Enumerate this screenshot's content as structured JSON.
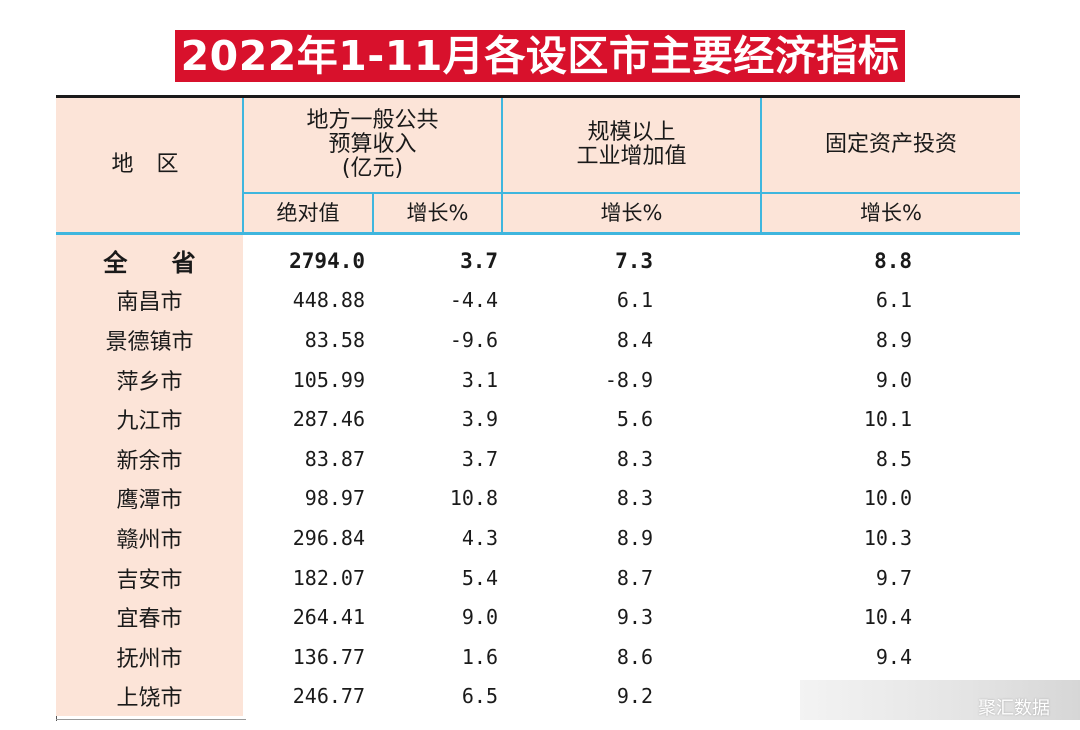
{
  "title": "2022年1-11月各设区市主要经济指标",
  "header": {
    "region": "地  区",
    "budget_lines": [
      "地方一般公共",
      "预算收入",
      "(亿元)"
    ],
    "industry_lines": [
      "规模以上",
      "工业增加值"
    ],
    "investment": "固定资产投资",
    "absolute": "绝对值",
    "growth": "增长%"
  },
  "rows": [
    {
      "name": "全  省",
      "abs": "2794.0",
      "budget_growth": "3.7",
      "industry_growth": "7.3",
      "investment_growth": "8.8"
    },
    {
      "name": "南昌市",
      "abs": "448.88",
      "budget_growth": "-4.4",
      "industry_growth": "6.1",
      "investment_growth": "6.1"
    },
    {
      "name": "景德镇市",
      "abs": "83.58",
      "budget_growth": "-9.6",
      "industry_growth": "8.4",
      "investment_growth": "8.9"
    },
    {
      "name": "萍乡市",
      "abs": "105.99",
      "budget_growth": "3.1",
      "industry_growth": "-8.9",
      "investment_growth": "9.0"
    },
    {
      "name": "九江市",
      "abs": "287.46",
      "budget_growth": "3.9",
      "industry_growth": "5.6",
      "investment_growth": "10.1"
    },
    {
      "name": "新余市",
      "abs": "83.87",
      "budget_growth": "3.7",
      "industry_growth": "8.3",
      "investment_growth": "8.5"
    },
    {
      "name": "鹰潭市",
      "abs": "98.97",
      "budget_growth": "10.8",
      "industry_growth": "8.3",
      "investment_growth": "10.0"
    },
    {
      "name": "赣州市",
      "abs": "296.84",
      "budget_growth": "4.3",
      "industry_growth": "8.9",
      "investment_growth": "10.3"
    },
    {
      "name": "吉安市",
      "abs": "182.07",
      "budget_growth": "5.4",
      "industry_growth": "8.7",
      "investment_growth": "9.7"
    },
    {
      "name": "宜春市",
      "abs": "264.41",
      "budget_growth": "9.0",
      "industry_growth": "9.3",
      "investment_growth": "10.4"
    },
    {
      "name": "抚州市",
      "abs": "136.77",
      "budget_growth": "1.6",
      "industry_growth": "8.6",
      "investment_growth": "9.4"
    },
    {
      "name": "上饶市",
      "abs": "246.77",
      "budget_growth": "6.5",
      "industry_growth": "9.2",
      "investment_growth": ""
    }
  ],
  "watermark": "聚汇数据",
  "colors": {
    "title_bg": "#d8112c",
    "header_bg": "#fce4d8",
    "rule": "#3fb6de"
  }
}
